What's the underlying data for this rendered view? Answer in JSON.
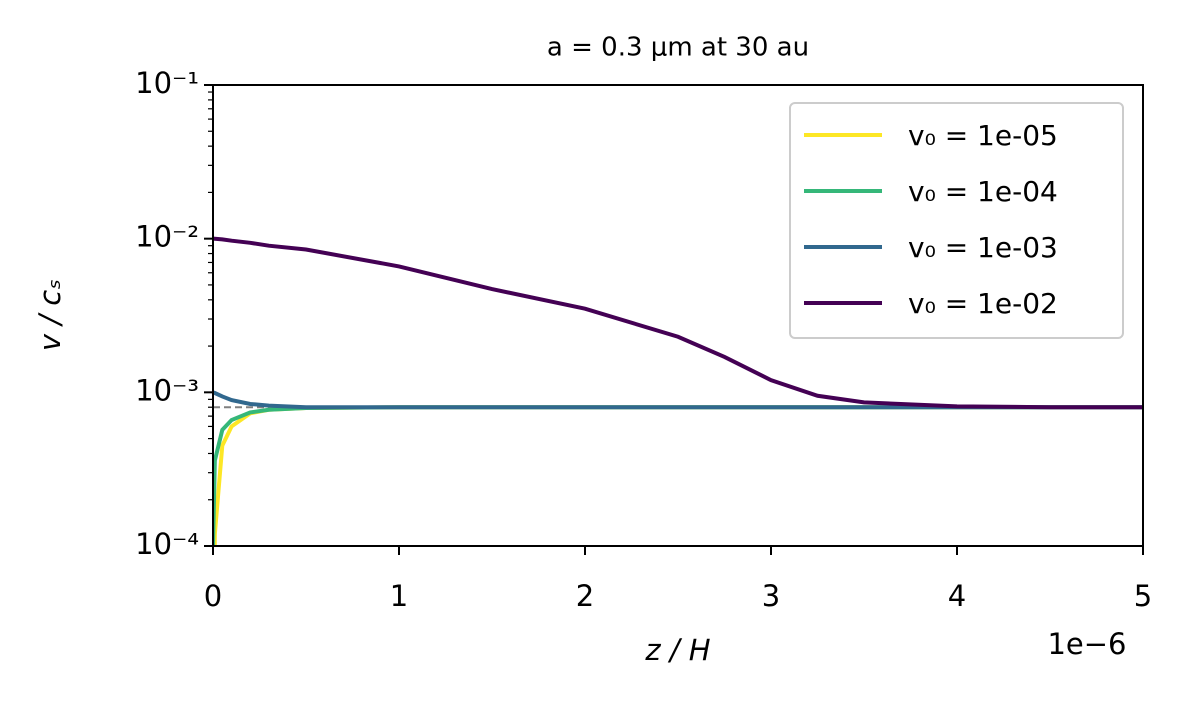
{
  "chart_data": {
    "type": "line",
    "title": "a = 0.3 μm at 30 au",
    "xlabel": "z / H",
    "ylabel": "v / cₛ",
    "x_offset_label": "1e−6",
    "x": [
      0,
      1e-08,
      5e-08,
      1e-07,
      2e-07,
      3e-07,
      5e-07,
      1e-06,
      1.5e-06,
      2e-06,
      2.5e-06,
      2.75e-06,
      3e-06,
      3.25e-06,
      3.5e-06,
      4e-06,
      4.5e-06,
      5e-06
    ],
    "series": [
      {
        "name": "v₀ = 1e-05",
        "color": "#fde725",
        "values": [
          1e-05,
          0.00012,
          0.00045,
          0.0006,
          0.00073,
          0.00077,
          0.00079,
          0.0008,
          0.0008,
          0.0008,
          0.0008,
          0.0008,
          0.0008,
          0.0008,
          0.0008,
          0.0008,
          0.0008,
          0.0008
        ]
      },
      {
        "name": "v₀ = 1e-04",
        "color": "#35b779",
        "values": [
          0.0001,
          0.00036,
          0.00057,
          0.00066,
          0.00074,
          0.00077,
          0.00079,
          0.0008,
          0.0008,
          0.0008,
          0.0008,
          0.0008,
          0.0008,
          0.0008,
          0.0008,
          0.0008,
          0.0008,
          0.0008
        ]
      },
      {
        "name": "v₀ = 1e-03",
        "color": "#31688e",
        "values": [
          0.001,
          0.00099,
          0.00094,
          0.00089,
          0.00084,
          0.00082,
          0.0008,
          0.0008,
          0.0008,
          0.0008,
          0.0008,
          0.0008,
          0.0008,
          0.0008,
          0.0008,
          0.0008,
          0.0008,
          0.0008
        ]
      },
      {
        "name": "v₀ = 1e-02",
        "color": "#440154",
        "values": [
          0.01,
          0.00998,
          0.0099,
          0.0097,
          0.0094,
          0.009,
          0.0085,
          0.0066,
          0.0047,
          0.0035,
          0.0023,
          0.0017,
          0.0012,
          0.00095,
          0.00086,
          0.00081,
          0.0008,
          0.0008
        ]
      }
    ],
    "reference_line": {
      "value": 0.0008,
      "xlim": [
        0,
        5e-07
      ],
      "color": "#808080"
    },
    "xlim": [
      0,
      5e-06
    ],
    "xticks": [
      0,
      {
        "value": 1e-06,
        "label": "1"
      },
      {
        "value": 2e-06,
        "label": "2"
      },
      {
        "value": 3e-06,
        "label": "3"
      },
      {
        "value": 4e-06,
        "label": "4"
      },
      {
        "value": 5e-06,
        "label": "5"
      }
    ],
    "ylim": [
      0.0001,
      0.1
    ],
    "yticks": [
      {
        "value": 0.0001,
        "label": "10⁻⁴"
      },
      {
        "value": 0.001,
        "label": "10⁻³"
      },
      {
        "value": 0.01,
        "label": "10⁻²"
      },
      {
        "value": 0.1,
        "label": "10⁻¹"
      }
    ],
    "yscale": "log",
    "legend": "upper right"
  }
}
